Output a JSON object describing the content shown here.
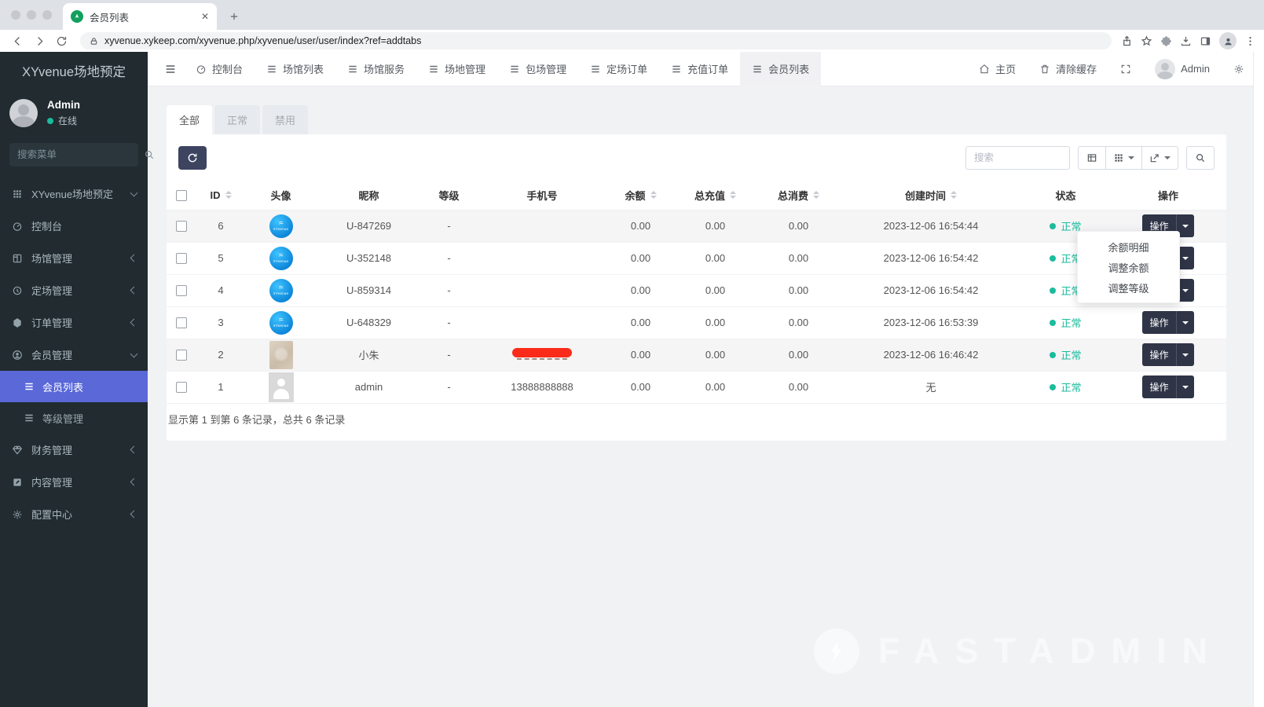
{
  "browser": {
    "tab_title": "会员列表",
    "url": "xyvenue.xykeep.com/xyvenue.php/xyvenue/user/user/index?ref=addtabs"
  },
  "sidebar": {
    "brand": "XYvenue场地预定",
    "user": {
      "name": "Admin",
      "status": "在线"
    },
    "search_placeholder": "搜索菜单",
    "root_item": {
      "label": "XYvenue场地预定",
      "icon": "grid-icon"
    },
    "items": [
      {
        "label": "控制台",
        "icon": "dashboard-icon",
        "expandable": false
      },
      {
        "label": "场馆管理",
        "icon": "venue-icon",
        "expandable": true
      },
      {
        "label": "定场管理",
        "icon": "clock-icon",
        "expandable": true
      },
      {
        "label": "订单管理",
        "icon": "order-icon",
        "expandable": true
      },
      {
        "label": "会员管理",
        "icon": "member-icon",
        "expandable": true,
        "expanded": true,
        "children": [
          {
            "label": "会员列表",
            "active": true
          },
          {
            "label": "等级管理",
            "active": false
          }
        ]
      },
      {
        "label": "财务管理",
        "icon": "finance-icon",
        "expandable": true
      },
      {
        "label": "内容管理",
        "icon": "content-icon",
        "expandable": true
      },
      {
        "label": "配置中心",
        "icon": "config-icon",
        "expandable": true
      }
    ]
  },
  "topnav": {
    "tabs": [
      {
        "label": "控制台",
        "icon": "dashboard-icon"
      },
      {
        "label": "场馆列表",
        "icon": "list-icon"
      },
      {
        "label": "场馆服务",
        "icon": "list-icon"
      },
      {
        "label": "场地管理",
        "icon": "list-icon"
      },
      {
        "label": "包场管理",
        "icon": "list-icon"
      },
      {
        "label": "定场订单",
        "icon": "list-icon"
      },
      {
        "label": "充值订单",
        "icon": "list-icon"
      },
      {
        "label": "会员列表",
        "icon": "list-icon",
        "active": true
      }
    ],
    "right": {
      "home": "主页",
      "clear_cache": "清除缓存",
      "user": "Admin"
    }
  },
  "content": {
    "filter_tabs": [
      {
        "label": "全部",
        "active": true
      },
      {
        "label": "正常",
        "active": false
      },
      {
        "label": "禁用",
        "active": false
      }
    ],
    "search_placeholder": "搜索",
    "table": {
      "columns": [
        {
          "label": "ID",
          "sortable": true
        },
        {
          "label": "头像",
          "sortable": false
        },
        {
          "label": "昵称",
          "sortable": false
        },
        {
          "label": "等级",
          "sortable": false
        },
        {
          "label": "手机号",
          "sortable": false
        },
        {
          "label": "余额",
          "sortable": true
        },
        {
          "label": "总充值",
          "sortable": true
        },
        {
          "label": "总消费",
          "sortable": true
        },
        {
          "label": "创建时间",
          "sortable": true
        },
        {
          "label": "状态",
          "sortable": false
        },
        {
          "label": "操作",
          "sortable": false
        }
      ],
      "operate_label": "操作",
      "rows": [
        {
          "id": "6",
          "avatar": "brand",
          "nickname": "U-847269",
          "level": "-",
          "phone": "",
          "phone_redacted": false,
          "balance": "0.00",
          "recharge": "0.00",
          "consume": "0.00",
          "created": "2023-12-06 16:54:44",
          "status": "正常",
          "highlight": true
        },
        {
          "id": "5",
          "avatar": "brand",
          "nickname": "U-352148",
          "level": "-",
          "phone": "",
          "phone_redacted": false,
          "balance": "0.00",
          "recharge": "0.00",
          "consume": "0.00",
          "created": "2023-12-06 16:54:42",
          "status": "正常",
          "highlight": false
        },
        {
          "id": "4",
          "avatar": "brand",
          "nickname": "U-859314",
          "level": "-",
          "phone": "",
          "phone_redacted": false,
          "balance": "0.00",
          "recharge": "0.00",
          "consume": "0.00",
          "created": "2023-12-06 16:54:42",
          "status": "正常",
          "highlight": false
        },
        {
          "id": "3",
          "avatar": "brand",
          "nickname": "U-648329",
          "level": "-",
          "phone": "",
          "phone_redacted": false,
          "balance": "0.00",
          "recharge": "0.00",
          "consume": "0.00",
          "created": "2023-12-06 16:53:39",
          "status": "正常",
          "highlight": false
        },
        {
          "id": "2",
          "avatar": "photo",
          "nickname": "小朱",
          "level": "-",
          "phone": "",
          "phone_redacted": true,
          "balance": "0.00",
          "recharge": "0.00",
          "consume": "0.00",
          "created": "2023-12-06 16:46:42",
          "status": "正常",
          "highlight": true
        },
        {
          "id": "1",
          "avatar": "placeholder",
          "nickname": "admin",
          "level": "-",
          "phone": "13888888888",
          "phone_redacted": false,
          "balance": "0.00",
          "recharge": "0.00",
          "consume": "0.00",
          "created": "无",
          "status": "正常",
          "highlight": false
        }
      ],
      "dropdown": {
        "open_for_id": "6",
        "items": [
          "余额明细",
          "调整余额",
          "调整等级"
        ]
      },
      "summary": "显示第 1 到第 6 条记录，总共 6 条记录"
    }
  },
  "watermark": "FASTADMIN",
  "brand_avatar": {
    "swoosh": "≈",
    "text": "XYvenue"
  },
  "colors": {
    "accent": "#5a68d8",
    "success": "#1abc9c",
    "danger": "#fa2c19",
    "dark_button": "#2f3547",
    "sidebar_bg": "#212b30"
  }
}
